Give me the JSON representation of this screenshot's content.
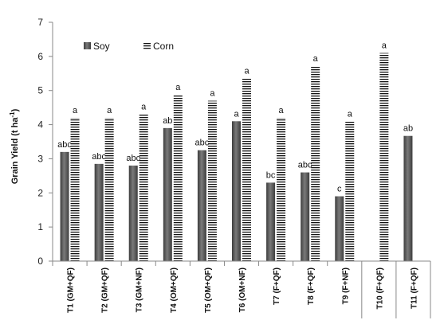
{
  "chart_data": {
    "type": "bar",
    "ylabel": "Grain Yield (t ha",
    "ylabel_sup": "-1",
    "ylabel_tail": ")",
    "ylim": [
      0,
      7
    ],
    "yticks": [
      "0",
      "1",
      "2",
      "3",
      "4",
      "5",
      "6",
      "7"
    ],
    "grid": false,
    "legend_position": "top-left",
    "categories": [
      "T1 (GM+QF)",
      "T2 (GM+QF)",
      "T3 (GM+NF)",
      "T4 (OM+QF)",
      "T5 (OM+QF)",
      "T6 (OM+NF)",
      "T7 (F+QF)",
      "T8 (F+QF)",
      "T9 (F+NF)",
      "T10 (F+QF)",
      "T11 (F+QF)"
    ],
    "series": [
      {
        "name": "Soy",
        "color": "#555555",
        "values": [
          3.2,
          2.85,
          2.8,
          3.9,
          3.25,
          4.1,
          2.3,
          2.6,
          1.9,
          null,
          3.67
        ],
        "labels": [
          "abc",
          "abc",
          "abc",
          "ab",
          "abc",
          "a",
          "bc",
          "abc",
          "c",
          "",
          "ab"
        ]
      },
      {
        "name": "Corn",
        "color": "#111111",
        "values": [
          4.2,
          4.2,
          4.3,
          4.88,
          4.7,
          5.35,
          4.2,
          5.72,
          4.1,
          6.1,
          null
        ],
        "labels": [
          "a",
          "a",
          "a",
          "a",
          "a",
          "a",
          "a",
          "a",
          "a",
          "a",
          ""
        ]
      }
    ]
  }
}
